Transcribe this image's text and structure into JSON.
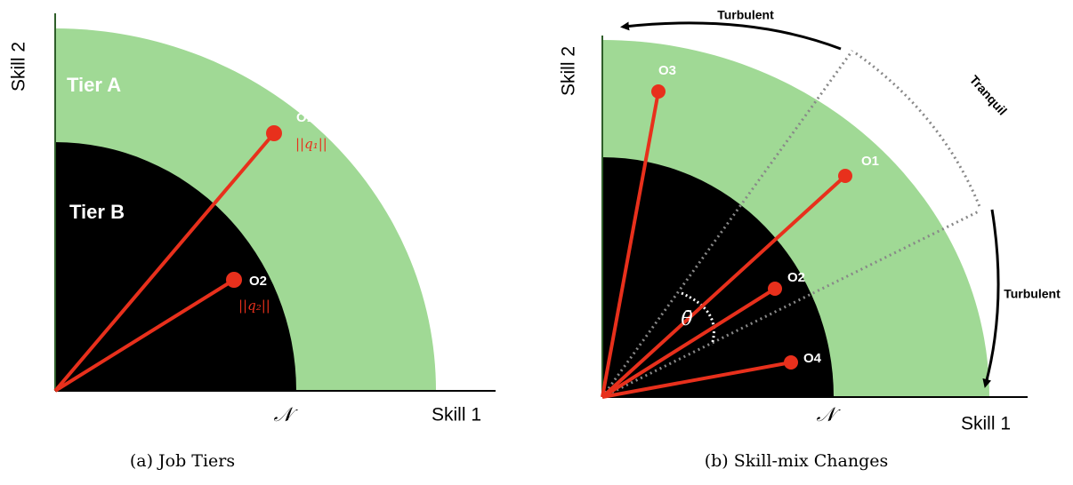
{
  "panels": [
    {
      "caption": "(a) Job Tiers",
      "x_axis": "Skill 1",
      "y_axis": "Skill 2",
      "origin_label": "𝒩",
      "regions": [
        "Tier A",
        "Tier B"
      ],
      "points": [
        {
          "label": "O1",
          "norm": "||q₁||"
        },
        {
          "label": "O2",
          "norm": "||q₂||"
        }
      ]
    },
    {
      "caption": "(b) Skill-mix Changes",
      "x_axis": "Skill 1",
      "y_axis": "Skill 2",
      "origin_label": "𝒩",
      "points": [
        "O3",
        "O1",
        "O2",
        "O4"
      ],
      "arcs": [
        "Turbulent",
        "Tranquil",
        "Turbulent"
      ],
      "angle": "θ̄"
    }
  ]
}
